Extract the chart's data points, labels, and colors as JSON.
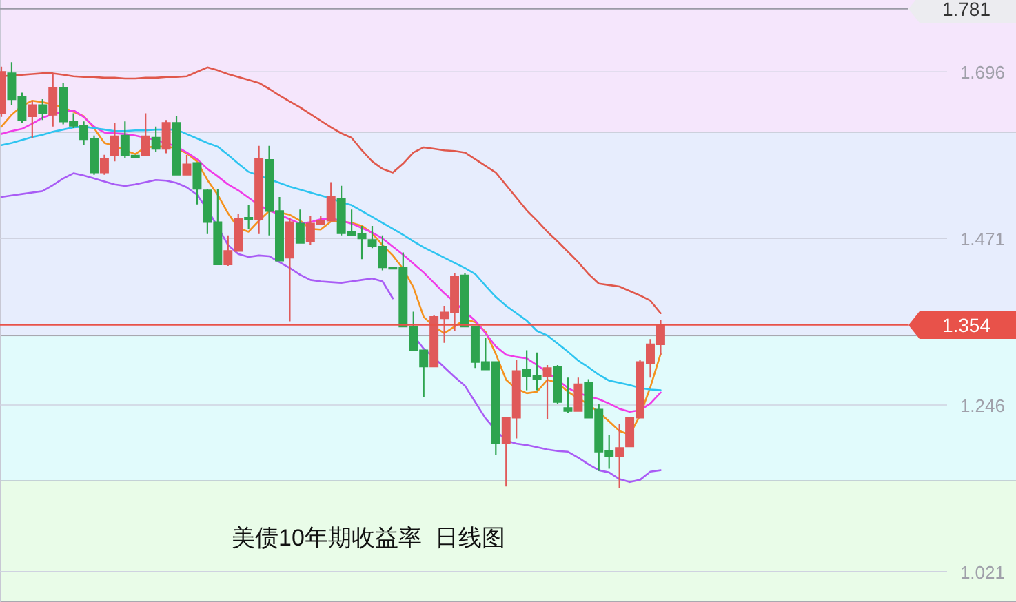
{
  "chart_data": {
    "type": "candlestick",
    "title": "美债10年期收益率  日线图",
    "categories": [
      null,
      null,
      null,
      null,
      null,
      null,
      null,
      null,
      null,
      null,
      null,
      null,
      null,
      null,
      null,
      null,
      null,
      null,
      null,
      null,
      null,
      null,
      null,
      null,
      null,
      null,
      null,
      null,
      null,
      null,
      null,
      null,
      null,
      null,
      null,
      null,
      null,
      null,
      null,
      null,
      null,
      null,
      null,
      null,
      null,
      null,
      null,
      null,
      null,
      null,
      null,
      null,
      null,
      null,
      null,
      null,
      null,
      null,
      null,
      null,
      null,
      null,
      null,
      null,
      null
    ],
    "ohlc": [
      [
        1.64,
        1.703,
        1.635,
        1.696
      ],
      [
        1.694,
        1.709,
        1.651,
        1.659
      ],
      [
        1.662,
        1.668,
        1.627,
        1.631
      ],
      [
        1.636,
        1.657,
        1.607,
        1.651
      ],
      [
        1.651,
        1.659,
        1.631,
        1.64
      ],
      [
        1.638,
        1.694,
        1.622,
        1.674
      ],
      [
        1.674,
        1.681,
        1.625,
        1.629
      ],
      [
        1.629,
        1.64,
        1.62,
        1.623
      ],
      [
        1.623,
        1.629,
        1.597,
        1.605
      ],
      [
        1.605,
        1.61,
        1.557,
        1.56
      ],
      [
        1.56,
        1.584,
        1.557,
        1.579
      ],
      [
        1.583,
        1.627,
        1.575,
        1.609
      ],
      [
        1.61,
        1.629,
        1.579,
        1.583
      ],
      [
        1.583,
        1.583,
        1.581,
        1.581
      ],
      [
        1.583,
        1.64,
        1.583,
        1.609
      ],
      [
        1.607,
        1.622,
        1.588,
        1.592
      ],
      [
        1.592,
        1.631,
        1.586,
        1.627
      ],
      [
        1.627,
        1.636,
        1.557,
        1.557
      ],
      [
        1.557,
        1.584,
        1.557,
        1.571
      ],
      [
        1.573,
        1.573,
        1.517,
        1.538
      ],
      [
        1.536,
        1.538,
        1.477,
        1.493
      ],
      [
        1.493,
        1.538,
        1.436,
        1.436
      ],
      [
        1.436,
        1.475,
        1.434,
        1.454
      ],
      [
        1.454,
        1.504,
        1.454,
        1.497
      ],
      [
        1.499,
        1.516,
        1.484,
        1.497
      ],
      [
        1.497,
        1.596,
        1.477,
        1.579
      ],
      [
        1.577,
        1.596,
        1.475,
        1.508
      ],
      [
        1.508,
        1.527,
        1.441,
        1.441
      ],
      [
        1.445,
        1.499,
        1.359,
        1.493
      ],
      [
        1.491,
        1.51,
        1.465,
        1.465
      ],
      [
        1.467,
        1.501,
        1.462,
        1.491
      ],
      [
        1.49,
        1.501,
        1.49,
        1.495
      ],
      [
        1.495,
        1.547,
        1.495,
        1.527
      ],
      [
        1.525,
        1.542,
        1.475,
        1.478
      ],
      [
        1.48,
        1.51,
        1.475,
        1.475
      ],
      [
        1.477,
        1.488,
        1.443,
        1.471
      ],
      [
        1.469,
        1.488,
        1.458,
        1.46
      ],
      [
        1.46,
        1.475,
        1.428,
        1.432
      ],
      [
        1.432,
        1.432,
        1.431,
        1.431
      ],
      [
        1.431,
        1.452,
        1.352,
        1.352
      ],
      [
        1.352,
        1.372,
        1.32,
        1.32
      ],
      [
        1.32,
        1.32,
        1.257,
        1.298
      ],
      [
        1.298,
        1.368,
        1.298,
        1.365
      ],
      [
        1.363,
        1.38,
        1.33,
        1.371
      ],
      [
        1.371,
        1.424,
        1.346,
        1.419
      ],
      [
        1.421,
        1.424,
        1.352,
        1.352
      ],
      [
        1.352,
        1.352,
        1.296,
        1.304
      ],
      [
        1.304,
        1.337,
        1.294,
        1.294
      ],
      [
        1.304,
        1.304,
        1.179,
        1.194
      ],
      [
        1.194,
        1.229,
        1.136,
        1.229
      ],
      [
        1.229,
        1.307,
        1.201,
        1.292
      ],
      [
        1.294,
        1.32,
        1.266,
        1.285
      ],
      [
        1.285,
        1.317,
        1.266,
        1.281
      ],
      [
        1.285,
        1.3,
        1.227,
        1.296
      ],
      [
        1.298,
        1.3,
        1.248,
        1.25
      ],
      [
        1.242,
        1.283,
        1.235,
        1.238
      ],
      [
        1.238,
        1.283,
        1.238,
        1.274
      ],
      [
        1.276,
        1.281,
        1.229,
        1.229
      ],
      [
        1.24,
        1.248,
        1.157,
        1.183
      ],
      [
        1.184,
        1.205,
        1.16,
        1.177
      ],
      [
        1.177,
        1.22,
        1.134,
        1.188
      ],
      [
        1.19,
        1.229,
        1.19,
        1.229
      ],
      [
        1.229,
        1.307,
        1.229,
        1.304
      ],
      [
        1.302,
        1.335,
        1.283,
        1.328
      ],
      [
        1.328,
        1.361,
        1.313,
        1.354
      ]
    ],
    "colors": [
      "#e05a5a",
      "#2ea44f",
      "#2ea44f",
      "#e05a5a",
      "#2ea44f",
      "#e05a5a",
      "#2ea44f",
      "#2ea44f",
      "#2ea44f",
      "#2ea44f",
      "#e05a5a",
      "#e05a5a",
      "#2ea44f",
      "#2ea44f",
      "#e05a5a",
      "#2ea44f",
      "#e05a5a",
      "#2ea44f",
      "#e05a5a",
      "#2ea44f",
      "#2ea44f",
      "#2ea44f",
      "#e05a5a",
      "#e05a5a",
      "#2ea44f",
      "#e05a5a",
      "#2ea44f",
      "#2ea44f",
      "#e05a5a",
      "#2ea44f",
      "#e05a5a",
      "#e05a5a",
      "#e05a5a",
      "#2ea44f",
      "#2ea44f",
      "#2ea44f",
      "#2ea44f",
      "#2ea44f",
      "#2ea44f",
      "#2ea44f",
      "#2ea44f",
      "#2ea44f",
      "#e05a5a",
      "#e05a5a",
      "#e05a5a",
      "#2ea44f",
      "#2ea44f",
      "#2ea44f",
      "#2ea44f",
      "#e05a5a",
      "#e05a5a",
      "#2ea44f",
      "#2ea44f",
      "#e05a5a",
      "#2ea44f",
      "#2ea44f",
      "#e05a5a",
      "#2ea44f",
      "#2ea44f",
      "#2ea44f",
      "#e05a5a",
      "#e05a5a",
      "#e05a5a",
      "#e05a5a",
      "#e05a5a"
    ],
    "series": [
      {
        "type": "line",
        "color": "#e0584c",
        "values": [
          1.69,
          1.691,
          1.692,
          1.693,
          1.694,
          1.694,
          1.692,
          1.69,
          1.689,
          1.689,
          1.688,
          1.688,
          1.687,
          1.687,
          1.688,
          1.688,
          1.689,
          1.689,
          1.69,
          1.696,
          1.702,
          1.698,
          1.693,
          1.689,
          1.685,
          1.681,
          1.673,
          1.664,
          1.656,
          1.648,
          1.639,
          1.63,
          1.621,
          1.613,
          1.607,
          1.59,
          1.575,
          1.565,
          1.56,
          1.572,
          1.587,
          1.594,
          1.592,
          1.59,
          1.589,
          1.587,
          1.578,
          1.569,
          1.56,
          1.543,
          1.526,
          1.509,
          1.495,
          1.48,
          1.467,
          1.453,
          1.439,
          1.423,
          1.41,
          1.408,
          1.406,
          1.4,
          1.394,
          1.387,
          1.37
        ]
      },
      {
        "type": "line",
        "color": "#f5921e",
        "values": [
          1.622,
          1.638,
          1.65,
          1.657,
          1.655,
          1.652,
          1.648,
          1.642,
          1.636,
          1.62,
          1.6,
          1.596,
          1.59,
          1.585,
          1.594,
          1.595,
          1.595,
          1.593,
          1.586,
          1.575,
          1.55,
          1.53,
          1.505,
          1.485,
          1.48,
          1.495,
          1.508,
          1.506,
          1.503,
          1.495,
          1.484,
          1.483,
          1.494,
          1.494,
          1.492,
          1.488,
          1.478,
          1.462,
          1.448,
          1.43,
          1.405,
          1.365,
          1.352,
          1.343,
          1.352,
          1.362,
          1.358,
          1.345,
          1.315,
          1.28,
          1.268,
          1.262,
          1.264,
          1.28,
          1.276,
          1.264,
          1.255,
          1.247,
          1.236,
          1.224,
          1.211,
          1.206,
          1.232,
          1.27,
          1.315
        ]
      },
      {
        "type": "line",
        "color": "#f03ce8",
        "values": [
          1.612,
          1.616,
          1.619,
          1.626,
          1.634,
          1.639,
          1.642,
          1.644,
          1.635,
          1.622,
          1.614,
          1.613,
          1.612,
          1.61,
          1.607,
          1.604,
          1.6,
          1.595,
          1.587,
          1.578,
          1.565,
          1.555,
          1.544,
          1.536,
          1.526,
          1.516,
          1.509,
          1.503,
          1.497,
          1.491,
          1.493,
          1.497,
          1.498,
          1.495,
          1.491,
          1.485,
          1.479,
          1.471,
          1.46,
          1.449,
          1.437,
          1.425,
          1.411,
          1.397,
          1.385,
          1.372,
          1.36,
          1.343,
          1.325,
          1.314,
          1.311,
          1.309,
          1.3,
          1.29,
          1.28,
          1.269,
          1.262,
          1.258,
          1.254,
          1.248,
          1.241,
          1.237,
          1.239,
          1.248,
          1.263
        ]
      },
      {
        "type": "line",
        "color": "#2ec4f0",
        "values": [
          1.597,
          1.6,
          1.604,
          1.608,
          1.611,
          1.615,
          1.618,
          1.621,
          1.622,
          1.62,
          1.618,
          1.616,
          1.616,
          1.617,
          1.617,
          1.618,
          1.618,
          1.618,
          1.612,
          1.606,
          1.6,
          1.595,
          1.584,
          1.572,
          1.561,
          1.556,
          1.551,
          1.546,
          1.541,
          1.537,
          1.533,
          1.529,
          1.525,
          1.52,
          1.516,
          1.508,
          1.5,
          1.492,
          1.484,
          1.476,
          1.467,
          1.459,
          1.452,
          1.445,
          1.438,
          1.431,
          1.423,
          1.407,
          1.392,
          1.38,
          1.37,
          1.36,
          1.346,
          1.34,
          1.329,
          1.318,
          1.306,
          1.297,
          1.287,
          1.279,
          1.276,
          1.273,
          1.269,
          1.267,
          1.266
        ]
      },
      {
        "type": "line",
        "color": "#a95cf5",
        "values": [
          1.527,
          1.529,
          1.531,
          1.533,
          1.535,
          1.543,
          1.552,
          1.559,
          1.556,
          1.552,
          1.548,
          1.544,
          1.542,
          1.544,
          1.547,
          1.55,
          1.549,
          1.546,
          1.54,
          1.53,
          1.51,
          1.487,
          1.462,
          1.45,
          1.446,
          1.448,
          1.447,
          1.439,
          1.431,
          1.422,
          1.415,
          1.413,
          1.412,
          1.411,
          1.413,
          1.415,
          1.417,
          1.413,
          1.39,
          null,
          1.34,
          1.322,
          1.31,
          1.297,
          1.284,
          1.272,
          1.25,
          1.228,
          1.212,
          1.198,
          1.194,
          1.192,
          1.189,
          1.186,
          1.184,
          1.183,
          1.175,
          1.166,
          1.158,
          1.155,
          1.146,
          1.142,
          1.145,
          1.156,
          1.158
        ]
      }
    ],
    "ylim": [
      0.98,
      1.793
    ],
    "yticks": [
      1.696,
      1.471,
      1.246,
      1.021
    ],
    "grid": "y",
    "bands": [
      {
        "axis": "y",
        "from": 1.614,
        "to": 1.793,
        "color": "#f5e6fc"
      },
      {
        "axis": "y",
        "from": 1.339,
        "to": 1.614,
        "color": "#e7edfd"
      },
      {
        "axis": "y",
        "from": 1.143,
        "to": 1.339,
        "color": "#e1fbfc"
      },
      {
        "axis": "y",
        "from": 0.98,
        "to": 1.143,
        "color": "#e9fce8"
      }
    ],
    "ref_lines": [
      {
        "axis": "y",
        "value": 1.781,
        "label": "1.781",
        "color": "#9a9aa6"
      },
      {
        "axis": "y",
        "value": 1.354,
        "label": "1.354",
        "color": "#e8524a"
      }
    ]
  }
}
